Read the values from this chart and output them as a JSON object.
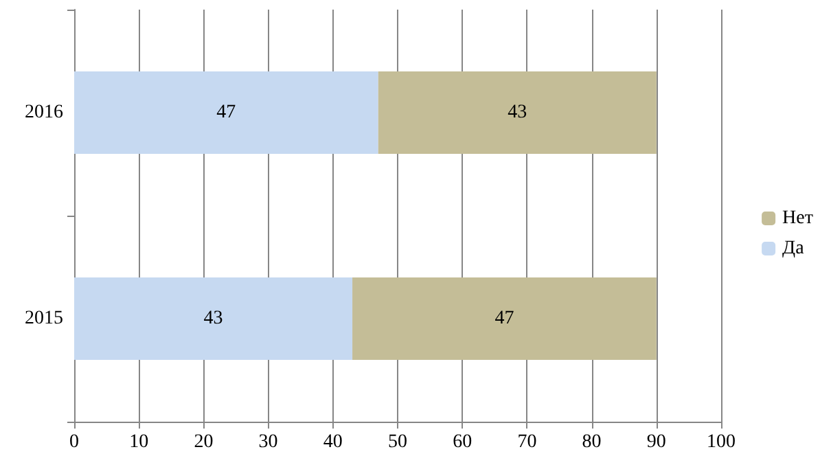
{
  "chart_data": {
    "type": "bar",
    "orientation": "horizontal",
    "stacked": true,
    "categories": [
      "2016",
      "2015"
    ],
    "series": [
      {
        "name": "Да",
        "color": "#c6d9f1",
        "values": [
          47,
          43
        ]
      },
      {
        "name": "Нет",
        "color": "#c4bd97",
        "values": [
          43,
          47
        ]
      }
    ],
    "xlim": [
      0,
      100
    ],
    "xticks": [
      0,
      10,
      20,
      30,
      40,
      50,
      60,
      70,
      80,
      90,
      100
    ],
    "grid": "x",
    "legend": "right",
    "data_labels": true
  }
}
